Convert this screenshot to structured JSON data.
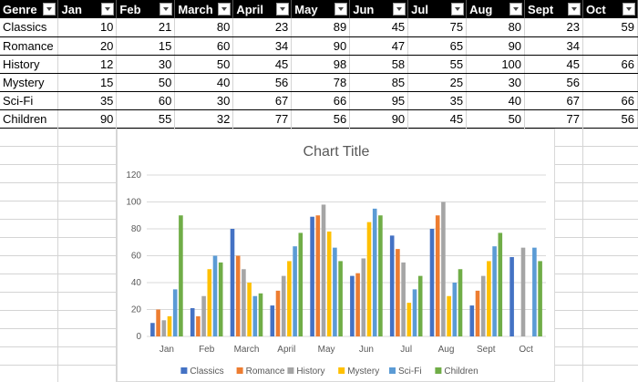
{
  "table": {
    "columns": [
      "Genre",
      "Jan",
      "Feb",
      "March",
      "April",
      "May",
      "Jun",
      "Jul",
      "Aug",
      "Sept",
      "Oct"
    ],
    "rows": [
      {
        "genre": "Classics",
        "values": [
          "10",
          "21",
          "80",
          "23",
          "89",
          "45",
          "75",
          "80",
          "23",
          "59"
        ]
      },
      {
        "genre": "Romance",
        "values": [
          "20",
          "15",
          "60",
          "34",
          "90",
          "47",
          "65",
          "90",
          "34",
          ""
        ]
      },
      {
        "genre": "History",
        "values": [
          "12",
          "30",
          "50",
          "45",
          "98",
          "58",
          "55",
          "100",
          "45",
          "66"
        ]
      },
      {
        "genre": "Mystery",
        "values": [
          "15",
          "50",
          "40",
          "56",
          "78",
          "85",
          "25",
          "30",
          "56",
          ""
        ]
      },
      {
        "genre": "Sci-Fi",
        "values": [
          "35",
          "60",
          "30",
          "67",
          "66",
          "95",
          "35",
          "40",
          "67",
          "66"
        ]
      },
      {
        "genre": "Children",
        "values": [
          "90",
          "55",
          "32",
          "77",
          "56",
          "90",
          "45",
          "50",
          "77",
          "56"
        ]
      }
    ]
  },
  "chart_data": {
    "type": "bar",
    "title": "Chart Title",
    "categories": [
      "Jan",
      "Feb",
      "March",
      "April",
      "May",
      "Jun",
      "Jul",
      "Aug",
      "Sept",
      "Oct"
    ],
    "series": [
      {
        "name": "Classics",
        "color": "#4472c4",
        "values": [
          10,
          21,
          80,
          23,
          89,
          45,
          75,
          80,
          23,
          59
        ]
      },
      {
        "name": "Romance",
        "color": "#ed7d31",
        "values": [
          20,
          15,
          60,
          34,
          90,
          47,
          65,
          90,
          34,
          0
        ]
      },
      {
        "name": "History",
        "color": "#a5a5a5",
        "values": [
          12,
          30,
          50,
          45,
          98,
          58,
          55,
          100,
          45,
          66
        ]
      },
      {
        "name": "Mystery",
        "color": "#ffc000",
        "values": [
          15,
          50,
          40,
          56,
          78,
          85,
          25,
          30,
          56,
          0
        ]
      },
      {
        "name": "Sci-Fi",
        "color": "#5b9bd5",
        "values": [
          35,
          60,
          30,
          67,
          66,
          95,
          35,
          40,
          67,
          66
        ]
      },
      {
        "name": "Children",
        "color": "#70ad47",
        "values": [
          90,
          55,
          32,
          77,
          56,
          90,
          45,
          50,
          77,
          56
        ]
      }
    ],
    "yticks": [
      0,
      20,
      40,
      60,
      80,
      100,
      120
    ],
    "ylim": [
      0,
      120
    ],
    "grid": true,
    "legend": "bottom"
  }
}
